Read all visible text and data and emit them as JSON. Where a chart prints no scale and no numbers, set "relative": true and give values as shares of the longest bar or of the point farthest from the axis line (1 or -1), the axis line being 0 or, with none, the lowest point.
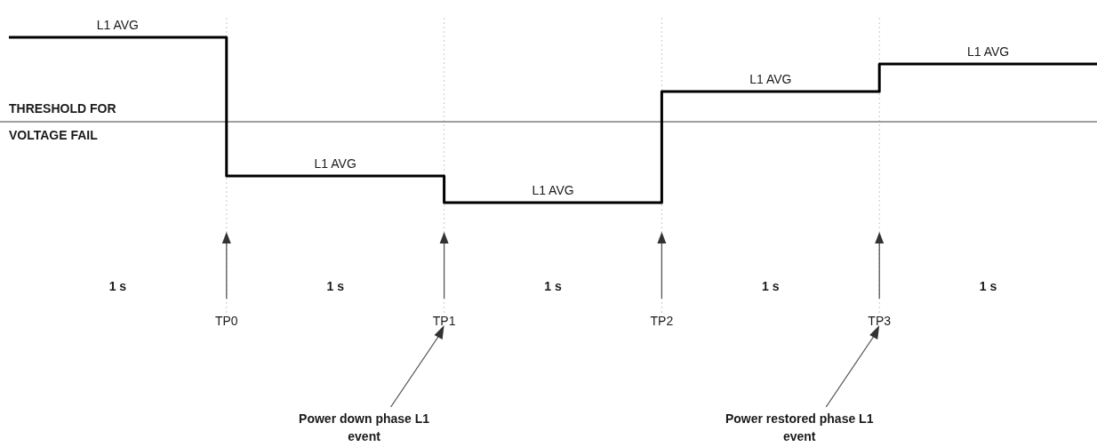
{
  "chart_data": {
    "type": "step",
    "relative": true,
    "grid": "x",
    "categories": [
      null,
      "TP0",
      "TP1",
      "TP2",
      "TP3",
      null
    ],
    "series": [
      {
        "color": "#000000",
        "values": [
          1,
          0.161,
          0,
          0.672,
          0.839,
          0.839
        ]
      }
    ],
    "ref_lines": [
      {
        "axis": "y",
        "value": 0.489,
        "label": "THRESHOLD FOR\nVOLTAGE FAIL",
        "color": "#7f7f7f"
      }
    ],
    "annotations": [
      "L1 AVG",
      "L1 AVG",
      "L1 AVG",
      "L1 AVG",
      "L1 AVG",
      "1 s",
      "1 s",
      "1 s",
      "1 s",
      "1 s",
      "Power down phase L1\nevent",
      "Power restored phase L1\nevent"
    ]
  }
}
